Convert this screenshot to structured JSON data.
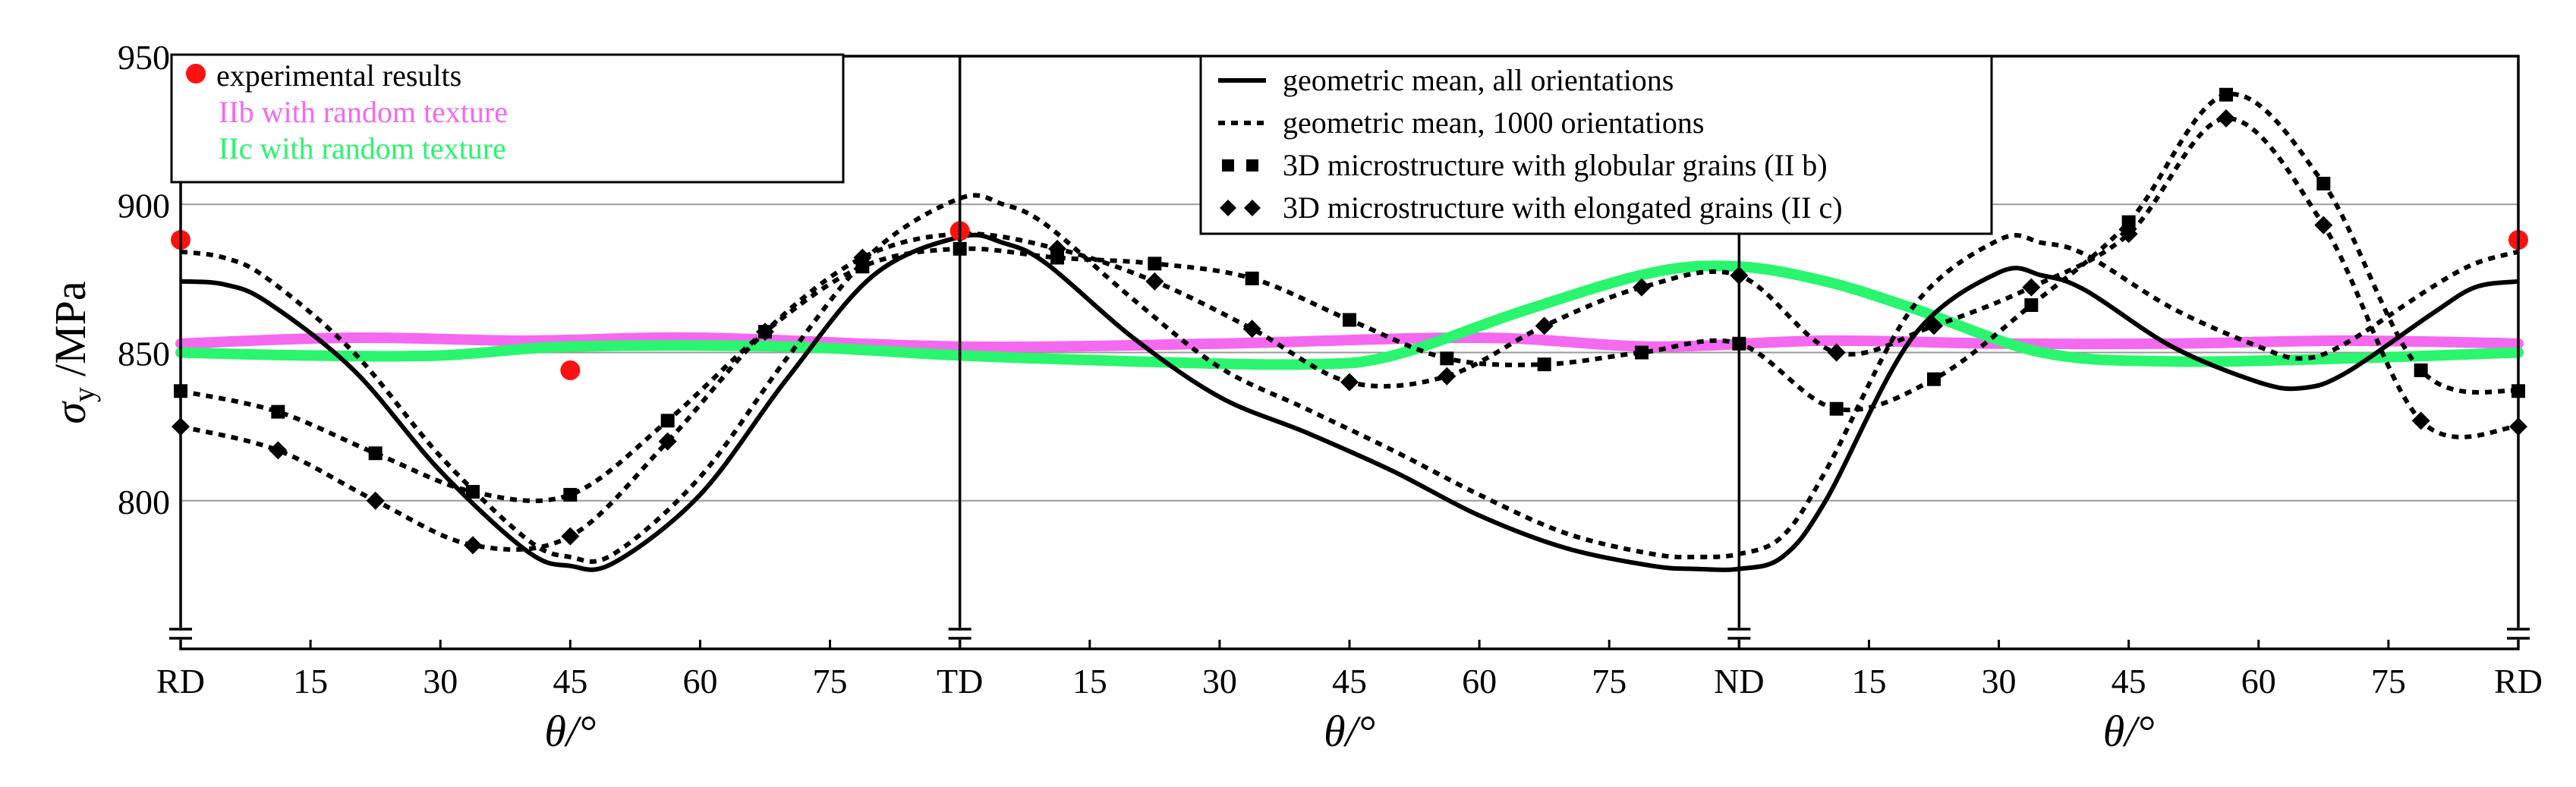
{
  "chart_data": {
    "type": "line",
    "ylabel_symbol": "σ",
    "ylabel_subscript": "y",
    "ylabel_unit": "/MPa",
    "xlabel": "θ/°",
    "ylim": [
      750,
      950
    ],
    "yticks": [
      950,
      900,
      850,
      800
    ],
    "y_axis_break": true,
    "grid": true,
    "segments": [
      {
        "start": "RD",
        "end": "TD",
        "tick_labels": [
          "RD",
          "15",
          "30",
          "45",
          "60",
          "75",
          "TD"
        ]
      },
      {
        "start": "TD",
        "end": "ND",
        "tick_labels": [
          "TD",
          "15",
          "30",
          "45",
          "60",
          "75",
          "ND"
        ]
      },
      {
        "start": "ND",
        "end": "RD",
        "tick_labels": [
          "ND",
          "15",
          "30",
          "45",
          "60",
          "75",
          "RD"
        ]
      }
    ],
    "x_unit": "position in degrees along RD→TD (0–90), TD→ND (90–180), ND→RD (180–270)",
    "xlim": [
      0,
      270
    ],
    "series": [
      {
        "name": "experimental results",
        "style": "markers",
        "color": "#ff1111",
        "x": [
          0,
          45,
          90,
          270
        ],
        "y": [
          888,
          844,
          891,
          888
        ]
      },
      {
        "name": "IIb with random texture",
        "style": "thick-line",
        "color": "#f569f0",
        "x": [
          0,
          20,
          40,
          60,
          90,
          120,
          150,
          170,
          190,
          210,
          230,
          250,
          270
        ],
        "y": [
          853,
          855,
          854,
          855,
          852,
          853,
          855,
          852,
          854,
          853,
          853,
          854,
          853
        ]
      },
      {
        "name": "IIc with random texture",
        "style": "thick-line",
        "color": "#2af56e",
        "x": [
          0,
          15,
          30,
          45,
          70,
          90,
          110,
          130,
          140,
          155,
          170,
          180,
          190,
          200,
          215,
          230,
          250,
          270
        ],
        "y": [
          850,
          849,
          849,
          852,
          852,
          849,
          847,
          846,
          849,
          864,
          877,
          879,
          874,
          865,
          850,
          847,
          848,
          850
        ]
      },
      {
        "name": "geometric mean, all orientations",
        "style": "solid",
        "color": "#000000",
        "x": [
          0,
          5,
          10,
          20,
          30,
          40,
          45,
          50,
          60,
          70,
          80,
          90,
          95,
          100,
          110,
          120,
          130,
          140,
          150,
          160,
          170,
          175,
          180,
          185,
          190,
          200,
          210,
          215,
          220,
          230,
          240,
          245,
          250,
          260,
          265,
          270
        ],
        "y": [
          874,
          873,
          867,
          844,
          810,
          783,
          778,
          779,
          802,
          841,
          876,
          889,
          887,
          880,
          855,
          835,
          823,
          810,
          795,
          784,
          778,
          777,
          777,
          781,
          800,
          855,
          877,
          876,
          871,
          852,
          840,
          838,
          843,
          863,
          872,
          874
        ]
      },
      {
        "name": "geometric mean, 1000 orientations",
        "style": "dotted",
        "color": "#000000",
        "x": [
          0,
          5,
          10,
          20,
          30,
          40,
          45,
          50,
          60,
          70,
          80,
          90,
          95,
          100,
          110,
          120,
          130,
          140,
          150,
          160,
          170,
          175,
          180,
          185,
          190,
          200,
          210,
          215,
          220,
          230,
          240,
          245,
          250,
          260,
          265,
          270
        ],
        "y": [
          884,
          882,
          875,
          850,
          815,
          787,
          781,
          782,
          808,
          848,
          884,
          902,
          900,
          893,
          868,
          845,
          831,
          817,
          802,
          789,
          782,
          781,
          782,
          788,
          810,
          865,
          888,
          887,
          883,
          865,
          852,
          848,
          853,
          872,
          880,
          884
        ]
      },
      {
        "name": "3D microstructure with globular grains (II b)",
        "style": "dotted-square-markers",
        "color": "#000000",
        "x": [
          0,
          11.25,
          22.5,
          33.75,
          45,
          56.25,
          67.5,
          78.75,
          90,
          101.25,
          112.5,
          123.75,
          135,
          146.25,
          157.5,
          168.75,
          180,
          191.25,
          202.5,
          213.75,
          225,
          236.25,
          247.5,
          258.75,
          270
        ],
        "y": [
          837,
          830,
          816,
          803,
          802,
          827,
          857,
          879,
          885,
          882,
          880,
          875,
          861,
          848,
          846,
          850,
          853,
          831,
          841,
          866,
          894,
          937,
          907,
          844,
          837
        ]
      },
      {
        "name": "3D microstructure with elongated grains (II c)",
        "style": "dotted-diamond-markers",
        "color": "#000000",
        "x": [
          0,
          11.25,
          22.5,
          33.75,
          45,
          56.25,
          67.5,
          78.75,
          90,
          101.25,
          112.5,
          123.75,
          135,
          146.25,
          157.5,
          168.75,
          180,
          191.25,
          202.5,
          213.75,
          225,
          236.25,
          247.5,
          258.75,
          270
        ],
        "y": [
          825,
          817,
          800,
          785,
          788,
          820,
          857,
          882,
          890,
          885,
          874,
          858,
          840,
          842,
          859,
          872,
          876,
          850,
          859,
          872,
          890,
          929,
          893,
          827,
          825
        ]
      }
    ],
    "legend_left": [
      "experimental results",
      "IIb with random texture",
      "IIc with random texture"
    ],
    "legend_right": [
      "geometric mean, all orientations",
      "geometric mean, 1000 orientations",
      "3D microstructure with globular grains (II b)",
      "3D microstructure with elongated grains (II c)"
    ]
  }
}
